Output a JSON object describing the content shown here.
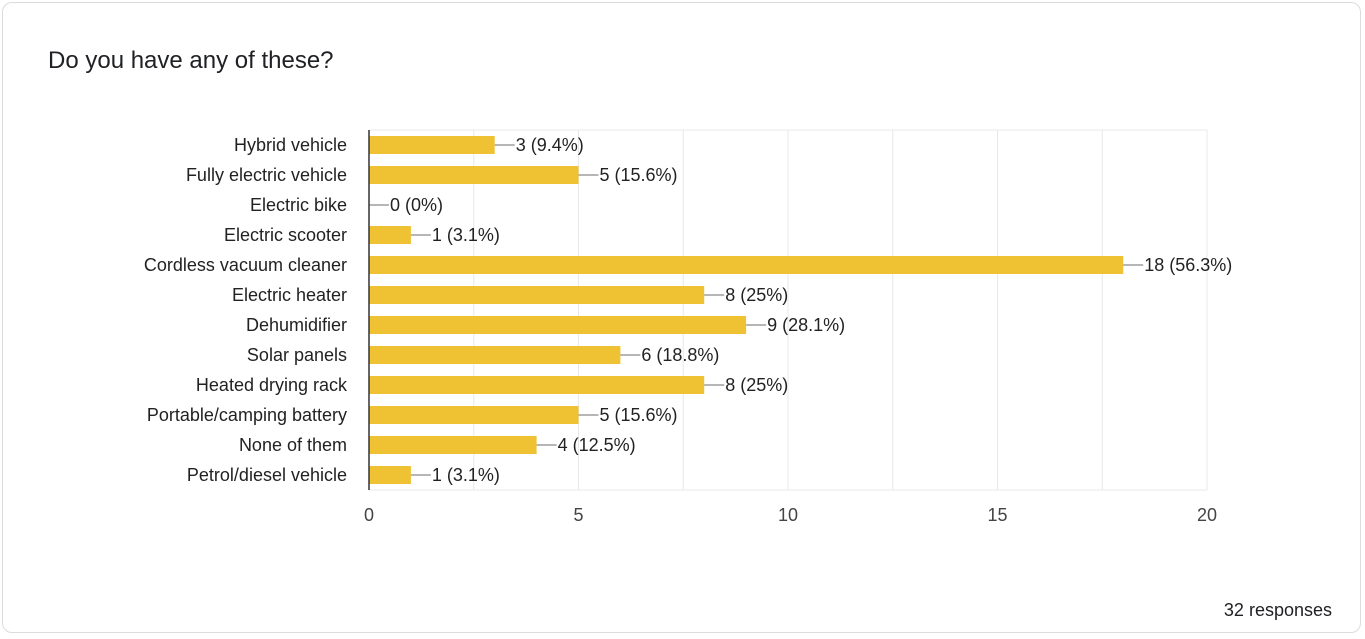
{
  "question": {
    "title": "Do you have any of these?"
  },
  "footer": {
    "responses_text": "32 responses"
  },
  "colors": {
    "bar": "#eec233",
    "grid": "#e8e8e8",
    "axis": "#333333",
    "leader": "#9e9e9e"
  },
  "chart_data": {
    "type": "bar",
    "orientation": "horizontal",
    "categories": [
      "Hybrid vehicle",
      "Fully electric vehicle",
      "Electric bike",
      "Electric scooter",
      "Cordless vacuum cleaner",
      "Electric heater",
      "Dehumidifier",
      "Solar panels",
      "Heated drying rack",
      "Portable/camping battery",
      "None of them",
      "Petrol/diesel vehicle"
    ],
    "values": [
      3,
      5,
      0,
      1,
      18,
      8,
      9,
      6,
      8,
      5,
      4,
      1
    ],
    "data_labels": [
      "3 (9.4%)",
      "5 (15.6%)",
      "0 (0%)",
      "1 (3.1%)",
      "18 (56.3%)",
      "8 (25%)",
      "9 (28.1%)",
      "6 (18.8%)",
      "8 (25%)",
      "5 (15.6%)",
      "4 (12.5%)",
      "1 (3.1%)"
    ],
    "xlim": [
      0,
      20
    ],
    "xticks": [
      0,
      5,
      10,
      15,
      20
    ],
    "xtick_labels": [
      "0",
      "5",
      "10",
      "15",
      "20"
    ],
    "grid": true,
    "title": "",
    "xlabel": "",
    "ylabel": ""
  }
}
